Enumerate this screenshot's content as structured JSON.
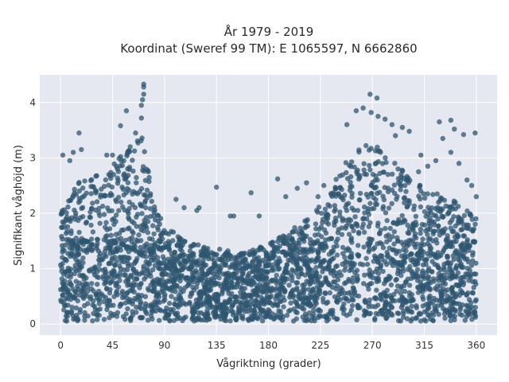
{
  "chart_data": {
    "type": "scatter",
    "title": "År 1979 - 2019",
    "subtitle": "Koordinat (Sweref 99 TM): E 1065597, N 6662860",
    "xlabel": "Vågriktning (grader)",
    "ylabel": "Signifikant våghöjd (m)",
    "xlim": [
      -18,
      378
    ],
    "ylim": [
      -0.2,
      4.5
    ],
    "x_ticks": [
      0,
      45,
      90,
      135,
      180,
      225,
      270,
      315,
      360
    ],
    "y_ticks": [
      0,
      1,
      2,
      3,
      4
    ],
    "grid": true,
    "legend": "none",
    "colors": {
      "marker": "#2f5670",
      "plot_bg": "#e5e8f0",
      "grid": "#ffffff"
    },
    "series": [
      {
        "density_profile_upper_envelope": [
          [
            0,
            2.0
          ],
          [
            10,
            2.5
          ],
          [
            20,
            2.6
          ],
          [
            30,
            2.7
          ],
          [
            40,
            2.8
          ],
          [
            50,
            3.0
          ],
          [
            60,
            3.2
          ],
          [
            68,
            3.5
          ],
          [
            72,
            3.3
          ],
          [
            78,
            2.5
          ],
          [
            85,
            2.0
          ],
          [
            95,
            1.7
          ],
          [
            110,
            1.5
          ],
          [
            125,
            1.35
          ],
          [
            140,
            1.3
          ],
          [
            155,
            1.3
          ],
          [
            170,
            1.35
          ],
          [
            185,
            1.5
          ],
          [
            200,
            1.7
          ],
          [
            215,
            1.95
          ],
          [
            230,
            2.3
          ],
          [
            245,
            2.9
          ],
          [
            255,
            3.1
          ],
          [
            265,
            3.3
          ],
          [
            275,
            3.2
          ],
          [
            290,
            2.9
          ],
          [
            305,
            2.6
          ],
          [
            320,
            2.4
          ],
          [
            335,
            2.3
          ],
          [
            350,
            2.2
          ],
          [
            360,
            2.0
          ]
        ],
        "outliers": [
          [
            72,
            4.33
          ],
          [
            72,
            4.28
          ],
          [
            72,
            4.15
          ],
          [
            71,
            4.05
          ],
          [
            70,
            3.95
          ],
          [
            70,
            3.72
          ],
          [
            57,
            3.85
          ],
          [
            52,
            3.58
          ],
          [
            65,
            3.45
          ],
          [
            16,
            3.45
          ],
          [
            18,
            3.15
          ],
          [
            11,
            3.1
          ],
          [
            2,
            3.05
          ],
          [
            8,
            2.95
          ],
          [
            40,
            3.05
          ],
          [
            45,
            3.05
          ],
          [
            76,
            2.75
          ],
          [
            100,
            2.25
          ],
          [
            107,
            2.1
          ],
          [
            120,
            2.1
          ],
          [
            118,
            2.05
          ],
          [
            135,
            2.47
          ],
          [
            147,
            1.95
          ],
          [
            150,
            1.95
          ],
          [
            165,
            2.37
          ],
          [
            172,
            1.95
          ],
          [
            188,
            2.62
          ],
          [
            195,
            2.3
          ],
          [
            205,
            2.45
          ],
          [
            213,
            2.55
          ],
          [
            228,
            2.5
          ],
          [
            223,
            2.3
          ],
          [
            268,
            4.15
          ],
          [
            274,
            4.08
          ],
          [
            262,
            3.9
          ],
          [
            256,
            3.85
          ],
          [
            275,
            3.75
          ],
          [
            281,
            3.7
          ],
          [
            269,
            3.82
          ],
          [
            248,
            3.6
          ],
          [
            287,
            3.6
          ],
          [
            296,
            3.55
          ],
          [
            302,
            3.48
          ],
          [
            290,
            3.4
          ],
          [
            328,
            3.65
          ],
          [
            338,
            3.68
          ],
          [
            341,
            3.52
          ],
          [
            349,
            3.42
          ],
          [
            359,
            3.45
          ],
          [
            331,
            3.35
          ],
          [
            338,
            3.1
          ],
          [
            312,
            3.05
          ],
          [
            325,
            2.95
          ],
          [
            345,
            2.9
          ],
          [
            352,
            2.6
          ],
          [
            356,
            2.5
          ],
          [
            360,
            2.3
          ],
          [
            318,
            2.85
          ],
          [
            310,
            2.75
          ]
        ]
      }
    ]
  }
}
